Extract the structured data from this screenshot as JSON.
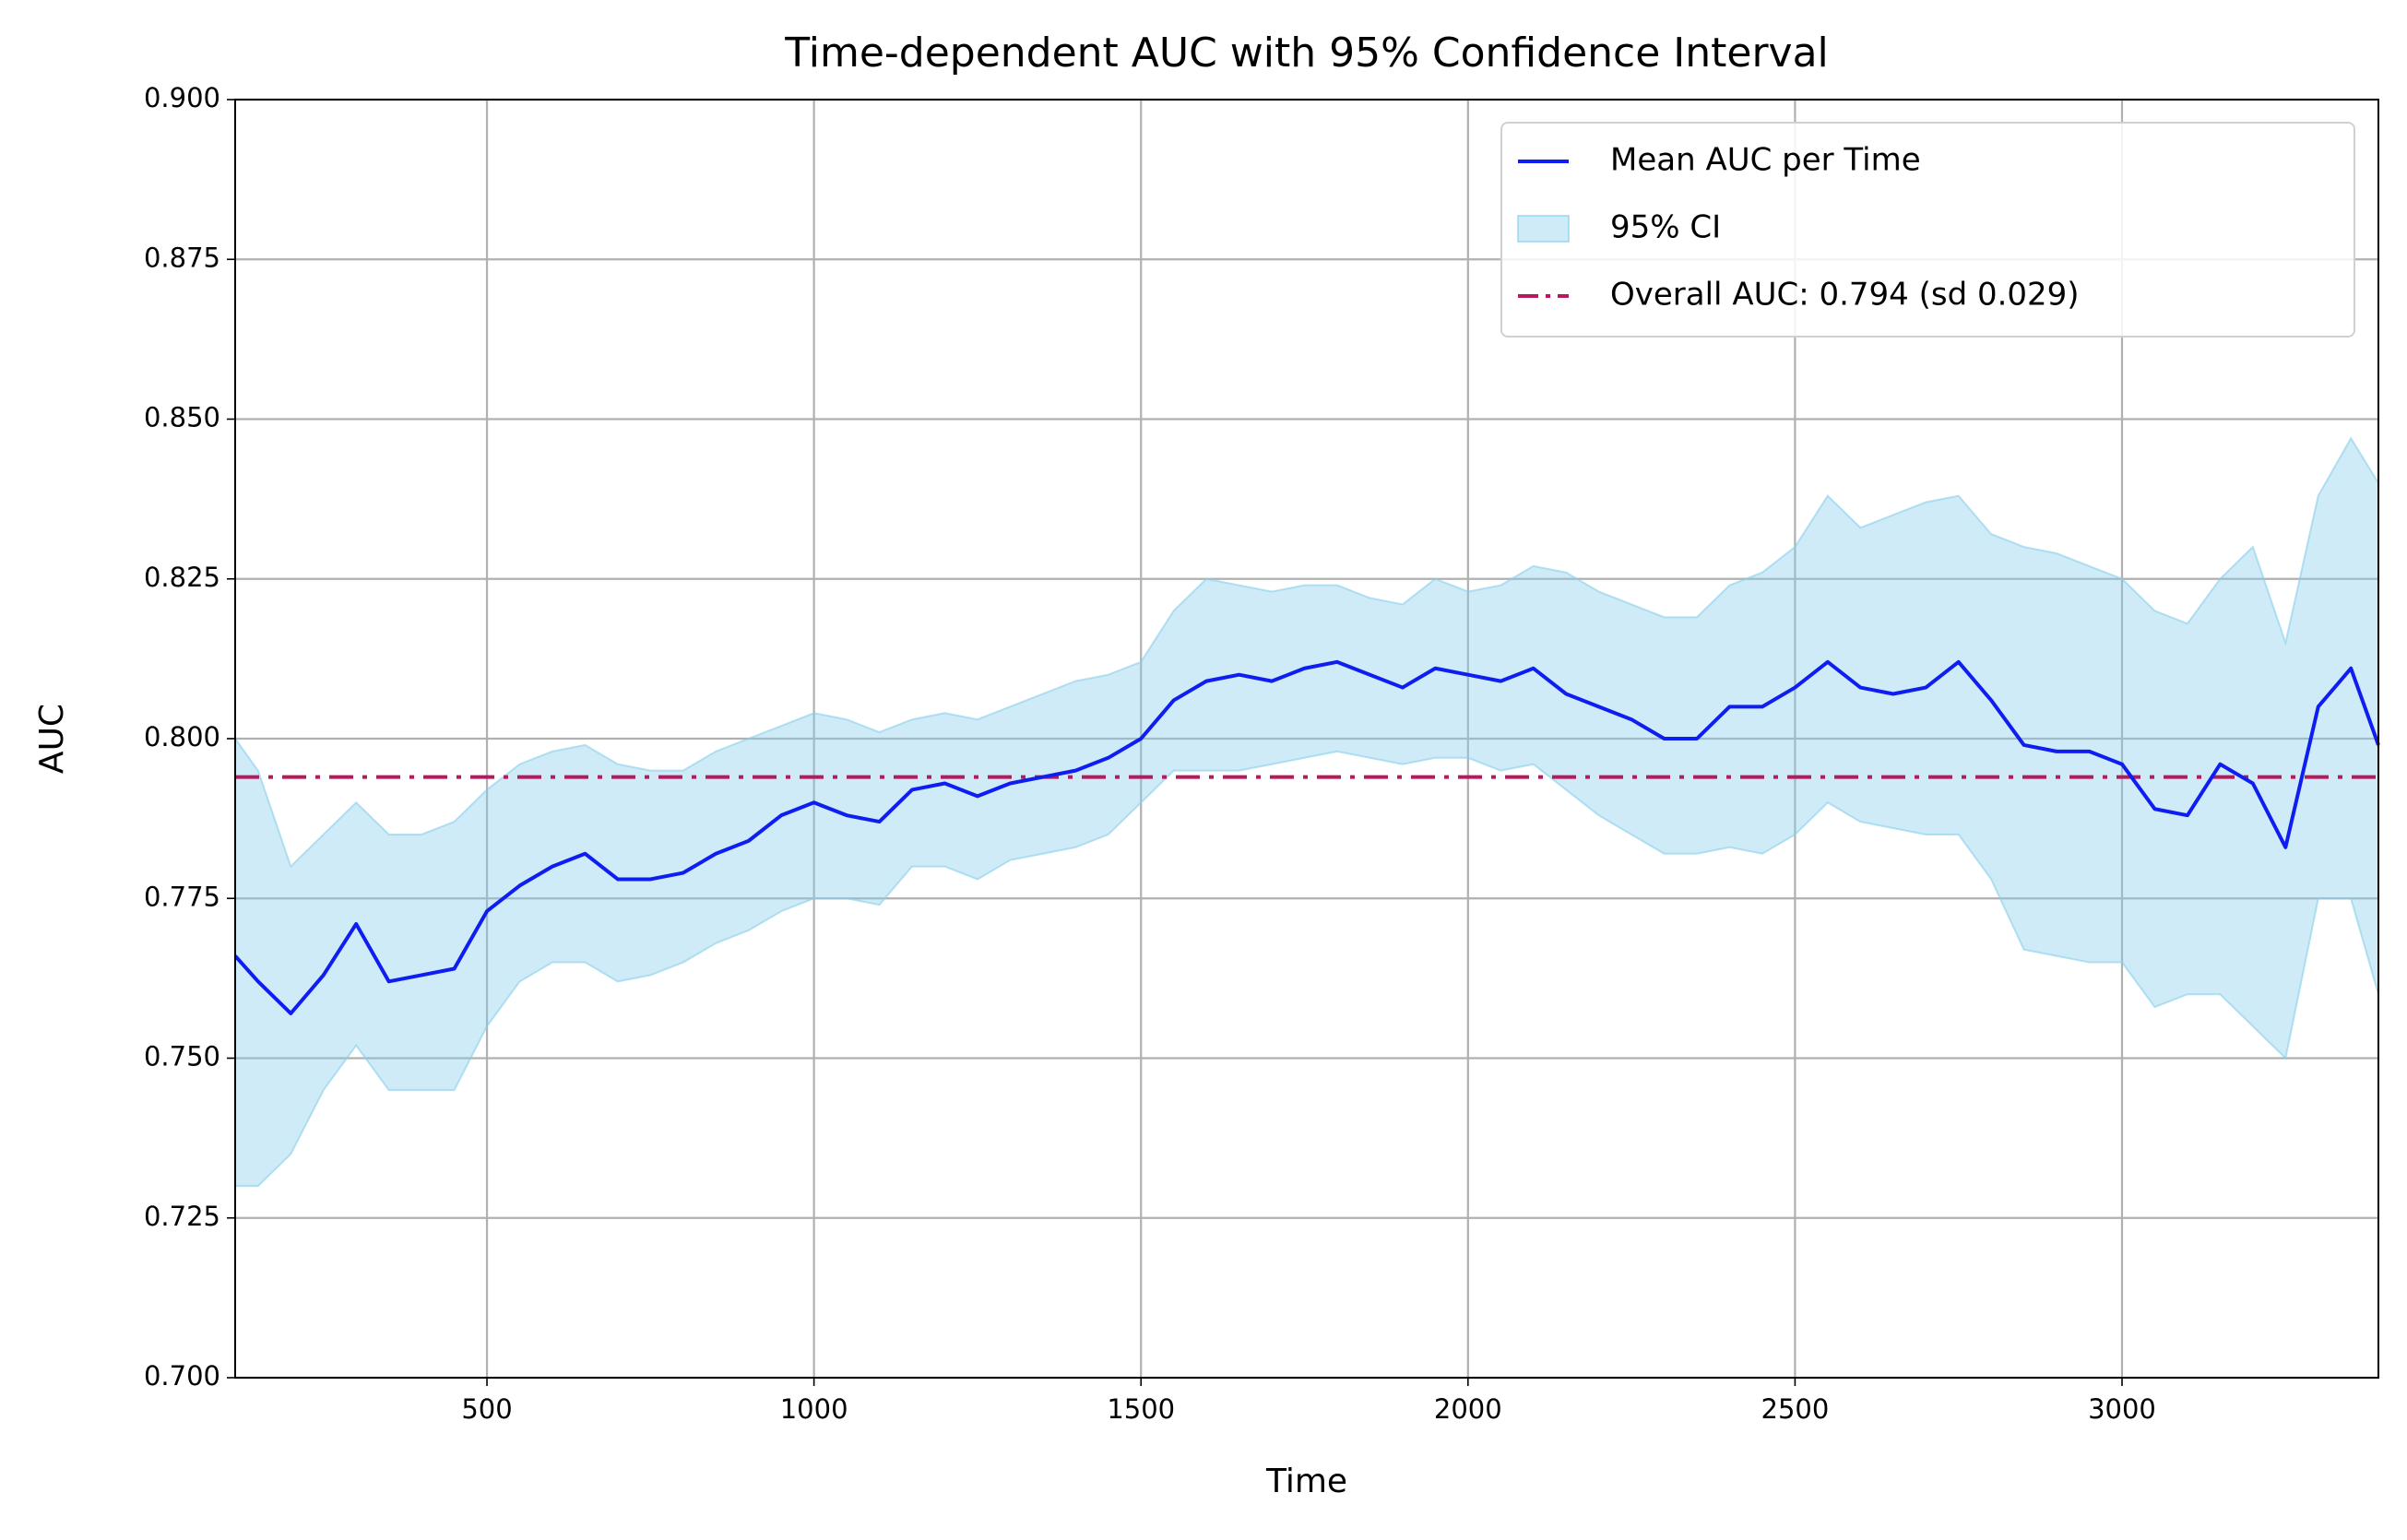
{
  "chart_data": {
    "type": "line",
    "title": "Time-dependent AUC with 95% Confidence Interval",
    "x_label": "Time",
    "y_label": "AUC",
    "x": [
      115,
      150,
      200,
      250,
      300,
      350,
      400,
      450,
      500,
      550,
      600,
      650,
      700,
      750,
      800,
      850,
      900,
      950,
      1000,
      1050,
      1100,
      1150,
      1200,
      1250,
      1300,
      1350,
      1400,
      1450,
      1500,
      1550,
      1600,
      1650,
      1700,
      1750,
      1800,
      1850,
      1900,
      1950,
      2000,
      2050,
      2100,
      2150,
      2200,
      2250,
      2300,
      2350,
      2400,
      2450,
      2500,
      2550,
      2600,
      2650,
      2700,
      2750,
      2800,
      2850,
      2900,
      2950,
      3000,
      3050,
      3100,
      3150,
      3200,
      3250,
      3300,
      3350,
      3392
    ],
    "series": [
      {
        "name": "Mean AUC per Time",
        "color": "#0f1ef0",
        "values": [
          0.766,
          0.762,
          0.757,
          0.763,
          0.771,
          0.762,
          0.763,
          0.764,
          0.773,
          0.777,
          0.78,
          0.782,
          0.778,
          0.778,
          0.779,
          0.782,
          0.784,
          0.788,
          0.79,
          0.788,
          0.787,
          0.792,
          0.793,
          0.791,
          0.793,
          0.794,
          0.795,
          0.797,
          0.8,
          0.806,
          0.809,
          0.81,
          0.809,
          0.811,
          0.812,
          0.81,
          0.808,
          0.811,
          0.81,
          0.809,
          0.811,
          0.807,
          0.805,
          0.803,
          0.8,
          0.8,
          0.805,
          0.805,
          0.808,
          0.812,
          0.808,
          0.807,
          0.808,
          0.812,
          0.806,
          0.799,
          0.798,
          0.798,
          0.796,
          0.789,
          0.788,
          0.796,
          0.793,
          0.783,
          0.805,
          0.811,
          0.799
        ]
      },
      {
        "name": "95% CI",
        "type": "band",
        "color": "#87ceeb",
        "lower": [
          0.73,
          0.73,
          0.735,
          0.745,
          0.752,
          0.745,
          0.745,
          0.745,
          0.755,
          0.762,
          0.765,
          0.765,
          0.762,
          0.763,
          0.765,
          0.768,
          0.77,
          0.773,
          0.775,
          0.775,
          0.774,
          0.78,
          0.78,
          0.778,
          0.781,
          0.782,
          0.783,
          0.785,
          0.79,
          0.795,
          0.795,
          0.795,
          0.796,
          0.797,
          0.798,
          0.797,
          0.796,
          0.797,
          0.797,
          0.795,
          0.796,
          0.792,
          0.788,
          0.785,
          0.782,
          0.782,
          0.783,
          0.782,
          0.785,
          0.79,
          0.787,
          0.786,
          0.785,
          0.785,
          0.778,
          0.767,
          0.766,
          0.765,
          0.765,
          0.758,
          0.76,
          0.76,
          0.755,
          0.75,
          0.775,
          0.775,
          0.76
        ],
        "upper": [
          0.8,
          0.795,
          0.78,
          0.785,
          0.79,
          0.785,
          0.785,
          0.787,
          0.792,
          0.796,
          0.798,
          0.799,
          0.796,
          0.795,
          0.795,
          0.798,
          0.8,
          0.802,
          0.804,
          0.803,
          0.801,
          0.803,
          0.804,
          0.803,
          0.805,
          0.807,
          0.809,
          0.81,
          0.812,
          0.82,
          0.825,
          0.824,
          0.823,
          0.824,
          0.824,
          0.822,
          0.821,
          0.825,
          0.823,
          0.824,
          0.827,
          0.826,
          0.823,
          0.821,
          0.819,
          0.819,
          0.824,
          0.826,
          0.83,
          0.838,
          0.833,
          0.835,
          0.837,
          0.838,
          0.832,
          0.83,
          0.829,
          0.827,
          0.825,
          0.82,
          0.818,
          0.825,
          0.83,
          0.815,
          0.838,
          0.847,
          0.84
        ]
      },
      {
        "name": "Overall AUC: 0.794 (sd 0.029)",
        "type": "hline",
        "color": "#b8185c",
        "value": 0.794
      }
    ],
    "xlim": [
      115,
      3392
    ],
    "ylim": [
      0.7,
      0.9
    ],
    "xticks": [
      500,
      1000,
      1500,
      2000,
      2500,
      3000
    ],
    "yticks": [
      {
        "value": 0.7,
        "label": "0.700"
      },
      0.725,
      {
        "value": 0.75,
        "label": "0.750"
      },
      0.775,
      {
        "value": 0.8,
        "label": "0.800"
      },
      0.825,
      {
        "value": 0.85,
        "label": "0.850"
      },
      0.875,
      {
        "value": 0.9,
        "label": "0.900"
      }
    ],
    "grid": true,
    "legend": "upper right"
  }
}
